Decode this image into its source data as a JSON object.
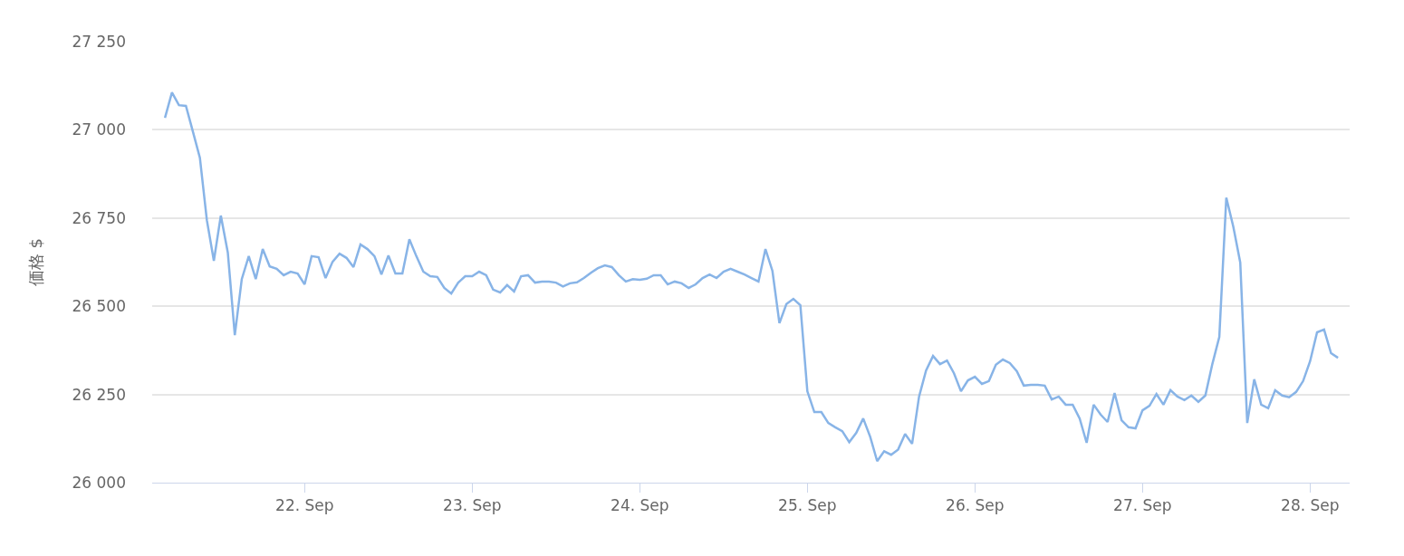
{
  "chart_data": {
    "type": "line",
    "ylabel": "価格 $",
    "color": "#88b4e7",
    "grid": "y",
    "marker": "none",
    "line_style": "solid",
    "ylim": [
      26000,
      27250
    ],
    "yticks": [
      {
        "value": 26000,
        "label": "26 000"
      },
      {
        "value": 26250,
        "label": "26 250"
      },
      {
        "value": 26500,
        "label": "26 500"
      },
      {
        "value": 26750,
        "label": "26 750"
      },
      {
        "value": 27000,
        "label": "27 000"
      },
      {
        "value": 27250,
        "label": "27 250"
      }
    ],
    "xlim": [
      "--09-21T02:10",
      "--09-28T05:40"
    ],
    "xticks": [
      {
        "value": "--09-22",
        "label": "22. Sep"
      },
      {
        "value": "--09-23",
        "label": "23. Sep"
      },
      {
        "value": "--09-24",
        "label": "24. Sep"
      },
      {
        "value": "--09-25",
        "label": "25. Sep"
      },
      {
        "value": "--09-26",
        "label": "26. Sep"
      },
      {
        "value": "--09-27",
        "label": "27. Sep"
      },
      {
        "value": "--09-28",
        "label": "28. Sep"
      }
    ],
    "x": [
      "--09-21T04:00",
      "--09-21T05:00",
      "--09-21T06:00",
      "--09-21T07:00",
      "--09-21T08:00",
      "--09-21T09:00",
      "--09-21T10:00",
      "--09-21T11:00",
      "--09-21T12:00",
      "--09-21T13:00",
      "--09-21T14:00",
      "--09-21T15:00",
      "--09-21T16:00",
      "--09-21T17:00",
      "--09-21T18:00",
      "--09-21T19:00",
      "--09-21T20:00",
      "--09-21T21:00",
      "--09-21T22:00",
      "--09-21T23:00",
      "--09-22T00:00",
      "--09-22T01:00",
      "--09-22T02:00",
      "--09-22T03:00",
      "--09-22T04:00",
      "--09-22T05:00",
      "--09-22T06:00",
      "--09-22T07:00",
      "--09-22T08:00",
      "--09-22T09:00",
      "--09-22T10:00",
      "--09-22T11:00",
      "--09-22T12:00",
      "--09-22T13:00",
      "--09-22T14:00",
      "--09-22T15:00",
      "--09-22T16:00",
      "--09-22T17:00",
      "--09-22T18:00",
      "--09-22T19:00",
      "--09-22T20:00",
      "--09-22T21:00",
      "--09-22T22:00",
      "--09-22T23:00",
      "--09-23T00:00",
      "--09-23T01:00",
      "--09-23T02:00",
      "--09-23T03:00",
      "--09-23T04:00",
      "--09-23T05:00",
      "--09-23T06:00",
      "--09-23T07:00",
      "--09-23T08:00",
      "--09-23T09:00",
      "--09-23T10:00",
      "--09-23T11:00",
      "--09-23T12:00",
      "--09-23T13:00",
      "--09-23T14:00",
      "--09-23T15:00",
      "--09-23T16:00",
      "--09-23T17:00",
      "--09-23T18:00",
      "--09-23T19:00",
      "--09-23T20:00",
      "--09-23T21:00",
      "--09-23T22:00",
      "--09-23T23:00",
      "--09-24T00:00",
      "--09-24T01:00",
      "--09-24T02:00",
      "--09-24T03:00",
      "--09-24T04:00",
      "--09-24T05:00",
      "--09-24T06:00",
      "--09-24T07:00",
      "--09-24T08:00",
      "--09-24T09:00",
      "--09-24T10:00",
      "--09-24T11:00",
      "--09-24T12:00",
      "--09-24T13:00",
      "--09-24T14:00",
      "--09-24T15:00",
      "--09-24T16:00",
      "--09-24T17:00",
      "--09-24T18:00",
      "--09-24T19:00",
      "--09-24T20:00",
      "--09-24T21:00",
      "--09-24T22:00",
      "--09-24T23:00",
      "--09-25T00:00",
      "--09-25T01:00",
      "--09-25T02:00",
      "--09-25T03:00",
      "--09-25T04:00",
      "--09-25T05:00",
      "--09-25T06:00",
      "--09-25T07:00",
      "--09-25T08:00",
      "--09-25T09:00",
      "--09-25T10:00",
      "--09-25T11:00",
      "--09-25T12:00",
      "--09-25T13:00",
      "--09-25T14:00",
      "--09-25T15:00",
      "--09-25T16:00",
      "--09-25T17:00",
      "--09-25T18:00",
      "--09-25T19:00",
      "--09-25T20:00",
      "--09-25T21:00",
      "--09-25T22:00",
      "--09-25T23:00",
      "--09-26T00:00",
      "--09-26T01:00",
      "--09-26T02:00",
      "--09-26T03:00",
      "--09-26T04:00",
      "--09-26T05:00",
      "--09-26T06:00",
      "--09-26T07:00",
      "--09-26T08:00",
      "--09-26T09:00",
      "--09-26T10:00",
      "--09-26T11:00",
      "--09-26T12:00",
      "--09-26T13:00",
      "--09-26T14:00",
      "--09-26T15:00",
      "--09-26T16:00",
      "--09-26T17:00",
      "--09-26T18:00",
      "--09-26T19:00",
      "--09-26T20:00",
      "--09-26T21:00",
      "--09-26T22:00",
      "--09-26T23:00",
      "--09-27T00:00",
      "--09-27T01:00",
      "--09-27T02:00",
      "--09-27T03:00",
      "--09-27T04:00",
      "--09-27T05:00",
      "--09-27T06:00",
      "--09-27T07:00",
      "--09-27T08:00",
      "--09-27T09:00",
      "--09-27T10:00",
      "--09-27T11:00",
      "--09-27T12:00",
      "--09-27T13:00",
      "--09-27T14:00",
      "--09-27T15:00",
      "--09-27T16:00",
      "--09-27T17:00",
      "--09-27T18:00",
      "--09-27T19:00",
      "--09-27T20:00",
      "--09-27T21:00",
      "--09-27T22:00",
      "--09-27T23:00",
      "--09-28T00:00",
      "--09-28T01:00",
      "--09-28T02:00",
      "--09-28T03:00",
      "--09-28T04:00"
    ],
    "values": [
      27034,
      27106,
      27070,
      27068,
      26995,
      26921,
      26744,
      26629,
      26757,
      26652,
      26418,
      26577,
      26642,
      26577,
      26662,
      26613,
      26606,
      26588,
      26598,
      26593,
      26562,
      26642,
      26639,
      26580,
      26626,
      26649,
      26637,
      26611,
      26675,
      26662,
      26642,
      26590,
      26644,
      26593,
      26593,
      26690,
      26642,
      26598,
      26585,
      26583,
      26552,
      26536,
      26567,
      26585,
      26585,
      26598,
      26588,
      26547,
      26539,
      26560,
      26542,
      26585,
      26588,
      26567,
      26570,
      26570,
      26567,
      26556,
      26565,
      26568,
      26580,
      26595,
      26608,
      26616,
      26611,
      26588,
      26570,
      26577,
      26575,
      26578,
      26588,
      26588,
      26562,
      26570,
      26565,
      26552,
      26562,
      26580,
      26590,
      26580,
      26598,
      26606,
      26598,
      26590,
      26580,
      26570,
      26662,
      26600,
      26452,
      26506,
      26521,
      26503,
      26259,
      26200,
      26200,
      26169,
      26157,
      26146,
      26115,
      26141,
      26182,
      26130,
      26061,
      26089,
      26079,
      26094,
      26138,
      26110,
      26244,
      26318,
      26359,
      26336,
      26346,
      26310,
      26259,
      26290,
      26300,
      26280,
      26288,
      26334,
      26349,
      26339,
      26316,
      26275,
      26277,
      26277,
      26275,
      26236,
      26244,
      26221,
      26221,
      26182,
      26113,
      26221,
      26193,
      26172,
      26254,
      26177,
      26157,
      26154,
      26205,
      26218,
      26251,
      26221,
      26262,
      26244,
      26234,
      26247,
      26229,
      26247,
      26336,
      26413,
      26808,
      26726,
      26624,
      26169,
      26293,
      26221,
      26211,
      26262,
      26247,
      26242,
      26257,
      26288,
      26344,
      26426,
      26434,
      26367,
      26354
    ]
  }
}
